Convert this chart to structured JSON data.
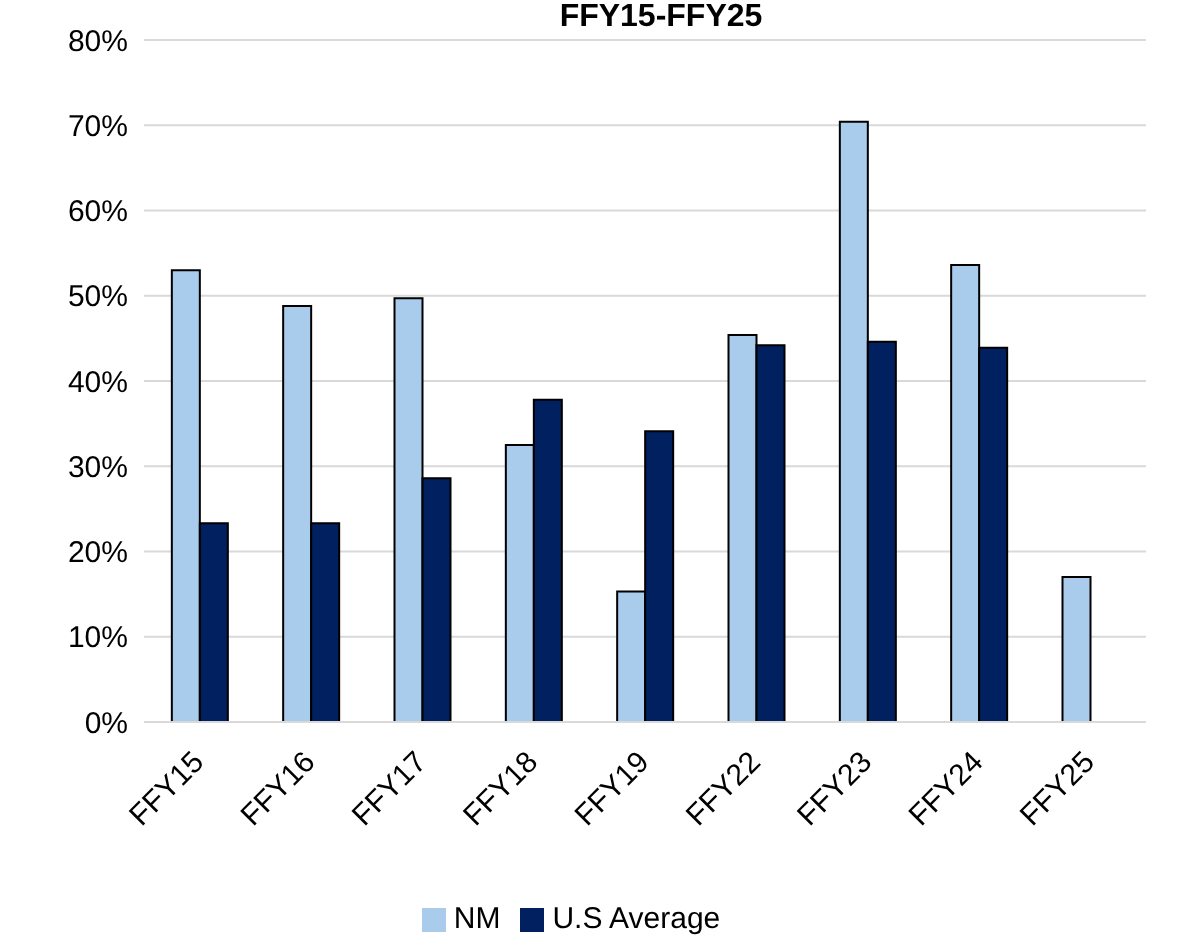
{
  "chart_data": {
    "type": "bar",
    "title": "FFY15-FFY25",
    "categories": [
      "FFY15",
      "FFY16",
      "FFY17",
      "FFY18",
      "FFY19",
      "FFY22",
      "FFY23",
      "FFY24",
      "FFY25"
    ],
    "series": [
      {
        "name": "NM",
        "color": "#a9cbec",
        "values": [
          53.0,
          48.8,
          49.7,
          32.5,
          15.3,
          45.4,
          70.4,
          53.6,
          17.0
        ]
      },
      {
        "name": "U.S Average",
        "color": "#002060",
        "values": [
          23.3,
          23.3,
          28.6,
          37.8,
          34.1,
          44.2,
          44.6,
          43.9,
          null
        ]
      }
    ],
    "ylim": [
      0,
      80
    ],
    "yticks": [
      {
        "value": 0,
        "label": "0%"
      },
      {
        "value": 10,
        "label": "10%"
      },
      {
        "value": 20,
        "label": "20%"
      },
      {
        "value": 30,
        "label": "30%"
      },
      {
        "value": 40,
        "label": "40%"
      },
      {
        "value": 50,
        "label": "50%"
      },
      {
        "value": 60,
        "label": "60%"
      },
      {
        "value": 70,
        "label": "70%"
      },
      {
        "value": 80,
        "label": "80%"
      }
    ],
    "grid": "y",
    "legend": "bottom"
  }
}
